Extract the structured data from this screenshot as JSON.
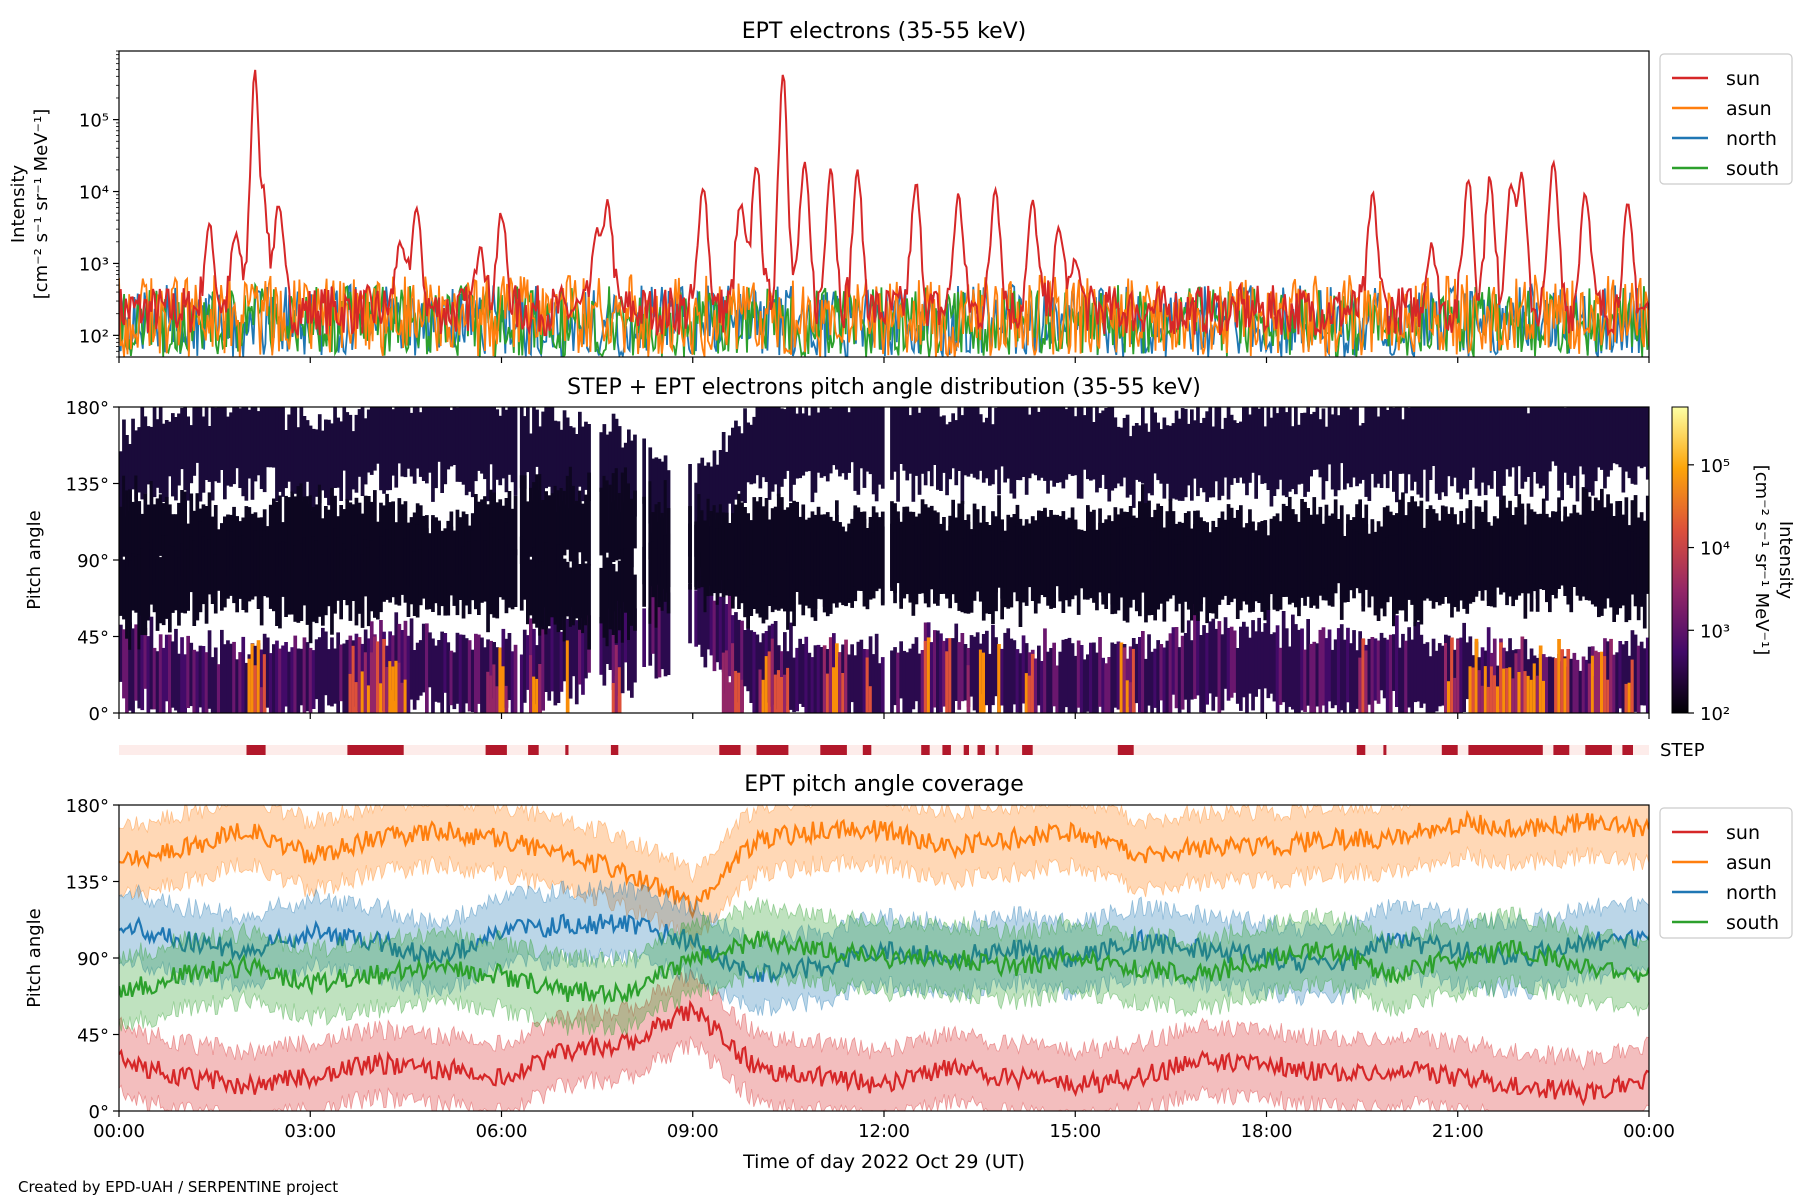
{
  "figure": {
    "credit": "Created by EPD-UAH / SERPENTINE project"
  },
  "colors": {
    "sun": "#d62728",
    "asun": "#ff7f0e",
    "north": "#1f77b4",
    "south": "#2ca02c",
    "step_on": "#b2182b",
    "step_off": "#fdecea"
  },
  "chart_data": [
    {
      "type": "line",
      "title": "EPT electrons (35-55 keV)",
      "ylabel": "Intensity",
      "ylabel_units": "[cm⁻² s⁻¹ sr⁻¹ MeV⁻¹]",
      "yscale": "log",
      "ylim": [
        50,
        900000
      ],
      "yticks": [
        "10²",
        "10³",
        "10⁴",
        "10⁵"
      ],
      "xlim_hours": [
        0,
        24
      ],
      "legend": {
        "position": "outside-right",
        "entries": [
          "sun",
          "asun",
          "north",
          "south"
        ]
      },
      "series": [
        {
          "name": "sun",
          "background_level": [
            100,
            500
          ],
          "peaks": [
            {
              "t": "01:25",
              "value": 4000
            },
            {
              "t": "01:50",
              "value": 2800
            },
            {
              "t": "02:08",
              "value": 500000
            },
            {
              "t": "02:15",
              "value": 15000
            },
            {
              "t": "02:30",
              "value": 8000
            },
            {
              "t": "04:25",
              "value": 2500
            },
            {
              "t": "04:40",
              "value": 7000
            },
            {
              "t": "05:40",
              "value": 2000
            },
            {
              "t": "06:00",
              "value": 6000
            },
            {
              "t": "07:30",
              "value": 3000
            },
            {
              "t": "07:40",
              "value": 8000
            },
            {
              "t": "09:10",
              "value": 13000
            },
            {
              "t": "09:45",
              "value": 8000
            },
            {
              "t": "10:00",
              "value": 30000
            },
            {
              "t": "10:25",
              "value": 500000
            },
            {
              "t": "10:45",
              "value": 30000
            },
            {
              "t": "11:10",
              "value": 25000
            },
            {
              "t": "11:35",
              "value": 25000
            },
            {
              "t": "12:30",
              "value": 15000
            },
            {
              "t": "13:10",
              "value": 10000
            },
            {
              "t": "13:45",
              "value": 12000
            },
            {
              "t": "14:20",
              "value": 8000
            },
            {
              "t": "14:45",
              "value": 4000
            },
            {
              "t": "15:00",
              "value": 1200
            },
            {
              "t": "19:40",
              "value": 10000
            },
            {
              "t": "20:35",
              "value": 2000
            },
            {
              "t": "21:10",
              "value": 20000
            },
            {
              "t": "21:30",
              "value": 17000
            },
            {
              "t": "21:50",
              "value": 16000
            },
            {
              "t": "22:00",
              "value": 20000
            },
            {
              "t": "22:30",
              "value": 28000
            },
            {
              "t": "23:00",
              "value": 12000
            },
            {
              "t": "23:40",
              "value": 8000
            }
          ]
        },
        {
          "name": "asun",
          "range": [
            50,
            700
          ]
        },
        {
          "name": "north",
          "range": [
            50,
            500
          ]
        },
        {
          "name": "south",
          "range": [
            50,
            500
          ]
        }
      ]
    },
    {
      "type": "heatmap",
      "title": "STEP + EPT electrons pitch angle distribution (35-55 keV)",
      "ylabel": "Pitch angle",
      "yticks": [
        "0°",
        "45°",
        "90°",
        "135°",
        "180°"
      ],
      "colorbar": {
        "label": "Intensity",
        "units": "[cm⁻² s⁻¹ sr⁻¹ MeV⁻¹]",
        "ticks": [
          "10²",
          "10³",
          "10⁴",
          "10⁵"
        ],
        "colormap": "inferno",
        "scale": "log"
      }
    },
    {
      "type": "timeline",
      "label": "STEP",
      "on_intervals": [
        [
          "02:00",
          "02:18"
        ],
        [
          "03:35",
          "04:28"
        ],
        [
          "05:45",
          "06:05"
        ],
        [
          "06:25",
          "06:35"
        ],
        [
          "07:00",
          "07:03"
        ],
        [
          "07:43",
          "07:50"
        ],
        [
          "09:25",
          "09:45"
        ],
        [
          "10:00",
          "10:30"
        ],
        [
          "11:00",
          "11:25"
        ],
        [
          "11:40",
          "11:48"
        ],
        [
          "12:35",
          "12:43"
        ],
        [
          "12:55",
          "13:03"
        ],
        [
          "13:15",
          "13:20"
        ],
        [
          "13:28",
          "13:35"
        ],
        [
          "13:45",
          "13:48"
        ],
        [
          "14:10",
          "14:20"
        ],
        [
          "15:40",
          "15:55"
        ],
        [
          "19:25",
          "19:33"
        ],
        [
          "19:50",
          "19:52"
        ],
        [
          "20:45",
          "21:00"
        ],
        [
          "21:10",
          "22:20"
        ],
        [
          "22:30",
          "22:45"
        ],
        [
          "23:00",
          "23:25"
        ],
        [
          "23:35",
          "23:45"
        ]
      ]
    },
    {
      "type": "area",
      "title": "EPT pitch angle coverage",
      "ylabel": "Pitch angle",
      "xlabel": "Time of day 2022 Oct 29 (UT)",
      "xticks": [
        "00:00",
        "03:00",
        "06:00",
        "09:00",
        "12:00",
        "15:00",
        "18:00",
        "21:00",
        "00:00"
      ],
      "yticks": [
        "0°",
        "45°",
        "90°",
        "135°",
        "180°"
      ],
      "ylim": [
        0,
        180
      ],
      "legend": {
        "position": "outside-right",
        "entries": [
          "sun",
          "asun",
          "north",
          "south"
        ]
      },
      "series": [
        {
          "name": "sun",
          "knots_hours": [
            0,
            1,
            2,
            3,
            4,
            5,
            6,
            7,
            8,
            9,
            10,
            11,
            12,
            13,
            14,
            15,
            16,
            17,
            18,
            19,
            20,
            21,
            22,
            23,
            24
          ],
          "values_deg": [
            30,
            20,
            15,
            20,
            28,
            25,
            20,
            35,
            40,
            60,
            25,
            20,
            15,
            25,
            20,
            15,
            20,
            30,
            28,
            22,
            25,
            20,
            15,
            10,
            20
          ]
        },
        {
          "name": "asun",
          "knots_hours": [
            0,
            1,
            2,
            3,
            4,
            5,
            6,
            7,
            8,
            9,
            10,
            11,
            12,
            13,
            14,
            15,
            16,
            17,
            18,
            19,
            20,
            21,
            22,
            23,
            24
          ],
          "values_deg": [
            145,
            155,
            165,
            150,
            160,
            165,
            160,
            150,
            140,
            120,
            160,
            165,
            165,
            155,
            160,
            165,
            150,
            155,
            155,
            160,
            160,
            170,
            165,
            170,
            165
          ]
        },
        {
          "name": "north",
          "knots_hours": [
            0,
            1,
            2,
            3,
            4,
            5,
            6,
            7,
            8,
            9,
            10,
            11,
            12,
            13,
            14,
            15,
            16,
            17,
            18,
            19,
            20,
            21,
            22,
            23,
            24
          ],
          "values_deg": [
            110,
            100,
            95,
            105,
            100,
            90,
            105,
            110,
            110,
            100,
            80,
            85,
            95,
            90,
            95,
            90,
            100,
            95,
            90,
            85,
            100,
            95,
            90,
            100,
            100
          ]
        },
        {
          "name": "south",
          "knots_hours": [
            0,
            1,
            2,
            3,
            4,
            5,
            6,
            7,
            8,
            9,
            10,
            11,
            12,
            13,
            14,
            15,
            16,
            17,
            18,
            19,
            20,
            21,
            22,
            23,
            24
          ],
          "values_deg": [
            70,
            80,
            85,
            75,
            80,
            85,
            80,
            70,
            70,
            90,
            100,
            95,
            90,
            90,
            85,
            90,
            85,
            80,
            90,
            95,
            80,
            90,
            95,
            85,
            80
          ]
        }
      ]
    }
  ]
}
